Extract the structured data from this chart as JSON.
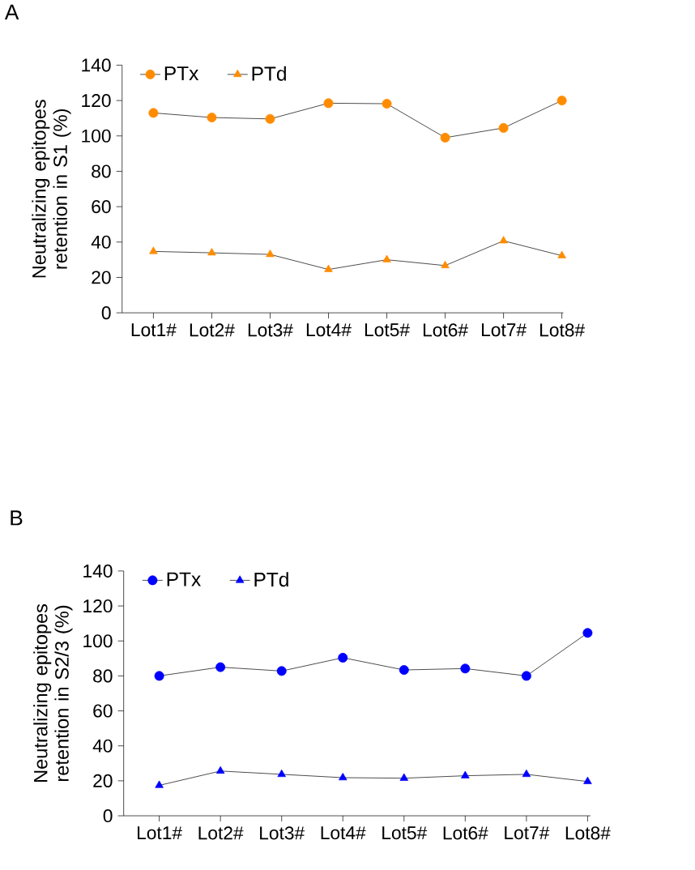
{
  "chart_data": [
    {
      "type": "line",
      "title": "A",
      "ylabel": "Neutralizing epitopes retention in S1 (%)",
      "categories": [
        "Lot1#",
        "Lot2#",
        "Lot3#",
        "Lot4#",
        "Lot5#",
        "Lot6#",
        "Lot7#",
        "Lot8#"
      ],
      "series": [
        {
          "name": "PTx",
          "color": "#ff8c00",
          "marker": "circle",
          "values": [
            113,
            110.4,
            109.6,
            118.5,
            118.2,
            99,
            104.5,
            120
          ]
        },
        {
          "name": "PTd",
          "color": "#ff8c00",
          "marker": "triangle",
          "values": [
            34.7,
            33.9,
            33,
            24.5,
            30,
            26.7,
            40.7,
            32.3
          ]
        }
      ],
      "ylim": [
        0,
        140
      ],
      "yticks": [
        0,
        20,
        40,
        60,
        80,
        100,
        120,
        140
      ],
      "legend": "top left",
      "grid": false
    },
    {
      "type": "line",
      "title": "B",
      "ylabel": "Neutralizing epitopes retention in S2/3 (%)",
      "categories": [
        "Lot1#",
        "Lot2#",
        "Lot3#",
        "Lot4#",
        "Lot5#",
        "Lot6#",
        "Lot7#",
        "Lot8#"
      ],
      "series": [
        {
          "name": "PTx",
          "color": "#0000ff",
          "marker": "circle",
          "values": [
            80,
            85,
            82.8,
            90.4,
            83.4,
            84.2,
            80,
            104.6
          ]
        },
        {
          "name": "PTd",
          "color": "#0000ff",
          "marker": "triangle",
          "values": [
            17.4,
            25.6,
            23.7,
            21.8,
            21.5,
            22.9,
            23.7,
            19.6
          ]
        }
      ],
      "ylim": [
        0,
        140
      ],
      "yticks": [
        0,
        20,
        40,
        60,
        80,
        100,
        120,
        140
      ],
      "legend": "top left",
      "grid": false
    }
  ]
}
